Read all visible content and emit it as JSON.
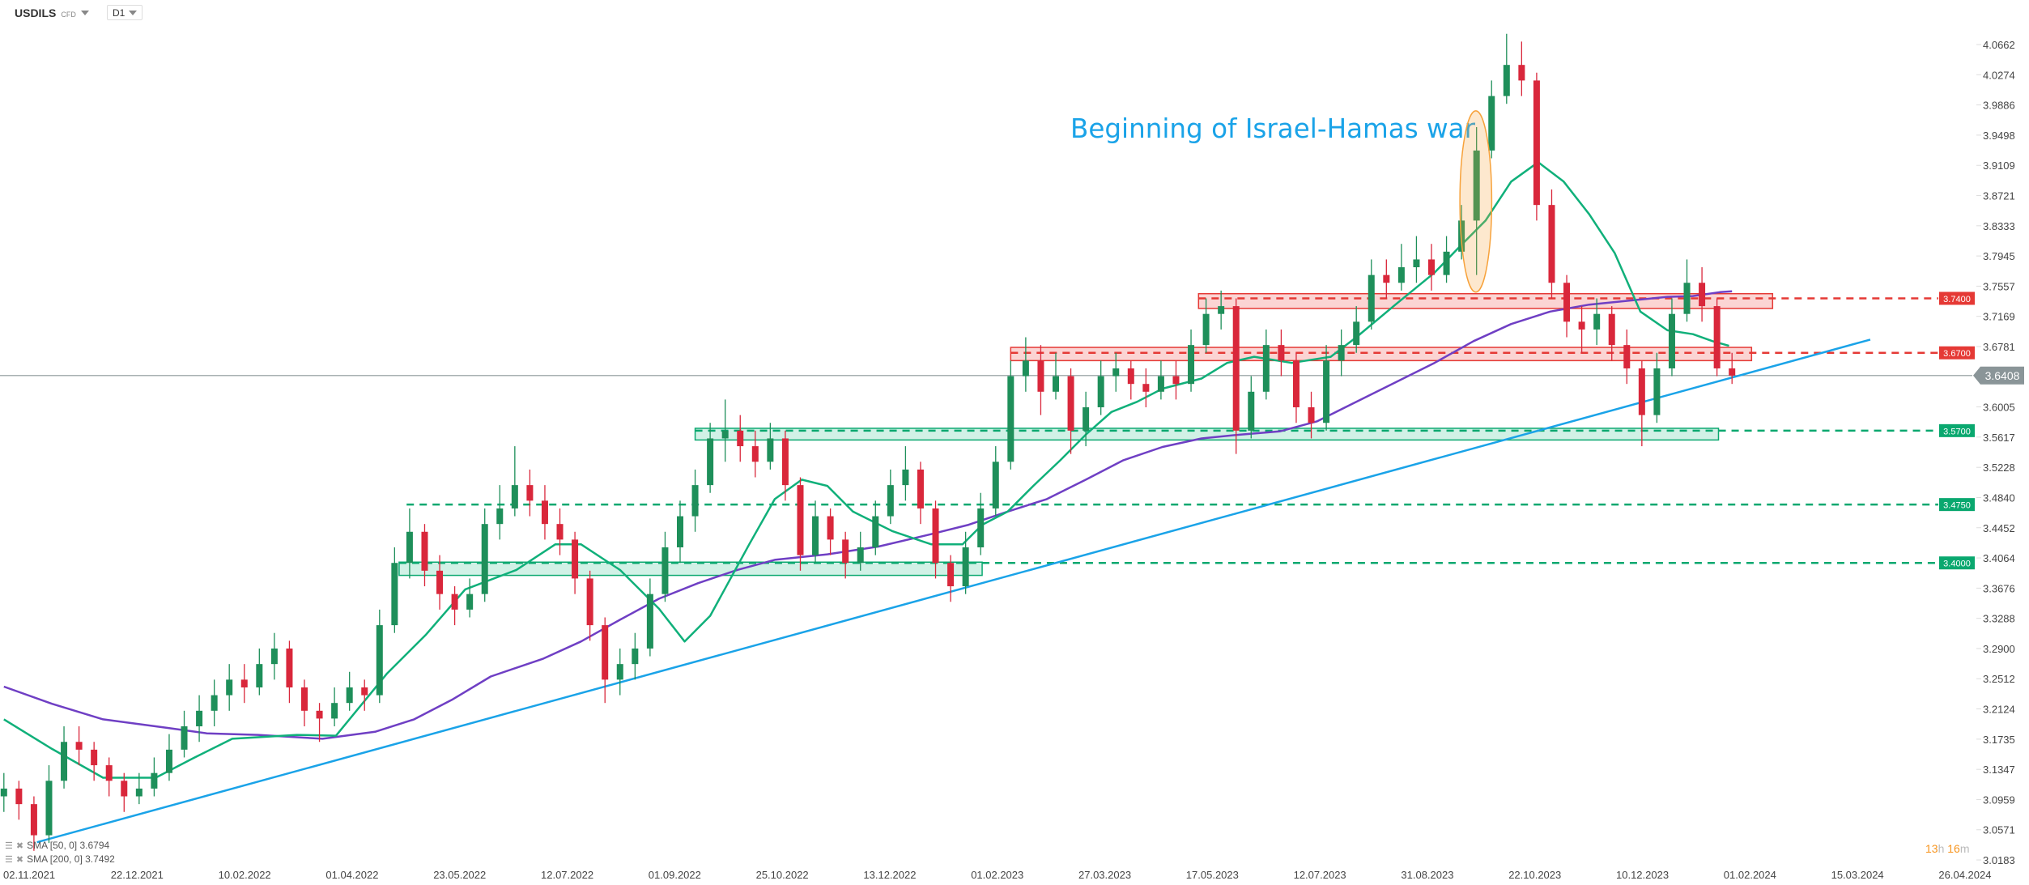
{
  "header": {
    "symbol": "USDILS",
    "instrument_type": "CFD",
    "timeframe": "D1"
  },
  "legend": [
    {
      "label": "SMA [50,  0] 3.6794",
      "color": "#10b07a"
    },
    {
      "label": "SMA [200,  0] 3.7492",
      "color": "#6f3fc4"
    }
  ],
  "countdown": {
    "hours": "13",
    "h": "h",
    "minutes": "16",
    "m": "m"
  },
  "annotation": {
    "text": "Beginning of Israel-Hamas war",
    "color": "#1aa3e8"
  },
  "colors": {
    "up": "#1e8f5a",
    "down": "#d9273b",
    "sma50": "#10b07a",
    "sma200": "#6f3fc4",
    "trendline": "#1aa3e8",
    "resistance": "#e53935",
    "support": "#0aa86f",
    "current": "#8a9598",
    "highlight": "#f7a23b"
  },
  "chart_data": {
    "type": "candlestick",
    "title": "USDILS",
    "ylim": [
      3.0183,
      4.0662
    ],
    "y_ticks": [
      "4.0662",
      "4.0274",
      "3.9886",
      "3.9498",
      "3.9109",
      "3.8721",
      "3.8333",
      "3.7945",
      "3.7557",
      "3.7169",
      "3.6781",
      "3.6005",
      "3.5617",
      "3.5228",
      "3.4840",
      "3.4452",
      "3.4064",
      "3.3676",
      "3.3288",
      "3.2900",
      "3.2512",
      "3.2124",
      "3.1735",
      "3.1347",
      "3.0959",
      "3.0571",
      "3.0183"
    ],
    "x_ticks": [
      "02.11.2021",
      "22.12.2021",
      "10.02.2022",
      "01.04.2022",
      "23.05.2022",
      "12.07.2022",
      "01.09.2022",
      "25.10.2022",
      "13.12.2022",
      "01.02.2023",
      "27.03.2023",
      "17.05.2023",
      "12.07.2023",
      "31.08.2023",
      "22.10.2023",
      "10.12.2023",
      "01.02.2024",
      "15.03.2024",
      "26.04.2024"
    ],
    "current_price": "3.6408",
    "ohlc": [
      [
        3.1,
        3.13,
        3.08,
        3.11
      ],
      [
        3.11,
        3.12,
        3.07,
        3.09
      ],
      [
        3.09,
        3.1,
        3.03,
        3.05
      ],
      [
        3.05,
        3.14,
        3.04,
        3.12
      ],
      [
        3.12,
        3.19,
        3.11,
        3.17
      ],
      [
        3.17,
        3.19,
        3.14,
        3.16
      ],
      [
        3.16,
        3.17,
        3.12,
        3.14
      ],
      [
        3.14,
        3.15,
        3.1,
        3.12
      ],
      [
        3.12,
        3.13,
        3.08,
        3.1
      ],
      [
        3.1,
        3.13,
        3.09,
        3.11
      ],
      [
        3.11,
        3.15,
        3.1,
        3.13
      ],
      [
        3.13,
        3.18,
        3.12,
        3.16
      ],
      [
        3.16,
        3.21,
        3.15,
        3.19
      ],
      [
        3.19,
        3.23,
        3.17,
        3.21
      ],
      [
        3.21,
        3.25,
        3.19,
        3.23
      ],
      [
        3.23,
        3.27,
        3.21,
        3.25
      ],
      [
        3.25,
        3.27,
        3.22,
        3.24
      ],
      [
        3.24,
        3.29,
        3.23,
        3.27
      ],
      [
        3.27,
        3.31,
        3.25,
        3.29
      ],
      [
        3.29,
        3.3,
        3.22,
        3.24
      ],
      [
        3.24,
        3.25,
        3.19,
        3.21
      ],
      [
        3.21,
        3.22,
        3.17,
        3.2
      ],
      [
        3.2,
        3.24,
        3.19,
        3.22
      ],
      [
        3.22,
        3.26,
        3.21,
        3.24
      ],
      [
        3.24,
        3.25,
        3.21,
        3.23
      ],
      [
        3.23,
        3.34,
        3.22,
        3.32
      ],
      [
        3.32,
        3.42,
        3.31,
        3.4
      ],
      [
        3.4,
        3.47,
        3.38,
        3.44
      ],
      [
        3.44,
        3.45,
        3.37,
        3.39
      ],
      [
        3.39,
        3.41,
        3.34,
        3.36
      ],
      [
        3.36,
        3.37,
        3.32,
        3.34
      ],
      [
        3.34,
        3.38,
        3.33,
        3.36
      ],
      [
        3.36,
        3.47,
        3.35,
        3.45
      ],
      [
        3.45,
        3.5,
        3.43,
        3.47
      ],
      [
        3.47,
        3.55,
        3.46,
        3.5
      ],
      [
        3.5,
        3.52,
        3.46,
        3.48
      ],
      [
        3.48,
        3.5,
        3.43,
        3.45
      ],
      [
        3.45,
        3.47,
        3.41,
        3.43
      ],
      [
        3.43,
        3.44,
        3.36,
        3.38
      ],
      [
        3.38,
        3.39,
        3.3,
        3.32
      ],
      [
        3.32,
        3.33,
        3.22,
        3.25
      ],
      [
        3.25,
        3.29,
        3.23,
        3.27
      ],
      [
        3.27,
        3.31,
        3.25,
        3.29
      ],
      [
        3.29,
        3.38,
        3.28,
        3.36
      ],
      [
        3.36,
        3.44,
        3.35,
        3.42
      ],
      [
        3.42,
        3.48,
        3.4,
        3.46
      ],
      [
        3.46,
        3.52,
        3.44,
        3.5
      ],
      [
        3.5,
        3.58,
        3.49,
        3.56
      ],
      [
        3.56,
        3.61,
        3.53,
        3.57
      ],
      [
        3.57,
        3.59,
        3.53,
        3.55
      ],
      [
        3.55,
        3.57,
        3.51,
        3.53
      ],
      [
        3.53,
        3.58,
        3.52,
        3.56
      ],
      [
        3.56,
        3.57,
        3.48,
        3.5
      ],
      [
        3.5,
        3.51,
        3.39,
        3.41
      ],
      [
        3.41,
        3.48,
        3.4,
        3.46
      ],
      [
        3.46,
        3.47,
        3.41,
        3.43
      ],
      [
        3.43,
        3.44,
        3.38,
        3.4
      ],
      [
        3.4,
        3.44,
        3.39,
        3.42
      ],
      [
        3.42,
        3.48,
        3.41,
        3.46
      ],
      [
        3.46,
        3.52,
        3.45,
        3.5
      ],
      [
        3.5,
        3.55,
        3.48,
        3.52
      ],
      [
        3.52,
        3.53,
        3.45,
        3.47
      ],
      [
        3.47,
        3.48,
        3.38,
        3.4
      ],
      [
        3.4,
        3.41,
        3.35,
        3.37
      ],
      [
        3.37,
        3.44,
        3.36,
        3.42
      ],
      [
        3.42,
        3.49,
        3.41,
        3.47
      ],
      [
        3.47,
        3.55,
        3.46,
        3.53
      ],
      [
        3.53,
        3.66,
        3.52,
        3.64
      ],
      [
        3.64,
        3.69,
        3.62,
        3.66
      ],
      [
        3.66,
        3.68,
        3.59,
        3.62
      ],
      [
        3.62,
        3.67,
        3.61,
        3.64
      ],
      [
        3.64,
        3.65,
        3.54,
        3.57
      ],
      [
        3.57,
        3.62,
        3.55,
        3.6
      ],
      [
        3.6,
        3.66,
        3.59,
        3.64
      ],
      [
        3.64,
        3.67,
        3.62,
        3.65
      ],
      [
        3.65,
        3.66,
        3.61,
        3.63
      ],
      [
        3.63,
        3.65,
        3.6,
        3.62
      ],
      [
        3.62,
        3.66,
        3.61,
        3.64
      ],
      [
        3.64,
        3.66,
        3.61,
        3.63
      ],
      [
        3.63,
        3.7,
        3.62,
        3.68
      ],
      [
        3.68,
        3.74,
        3.67,
        3.72
      ],
      [
        3.72,
        3.75,
        3.7,
        3.73
      ],
      [
        3.73,
        3.74,
        3.54,
        3.57
      ],
      [
        3.57,
        3.64,
        3.56,
        3.62
      ],
      [
        3.62,
        3.7,
        3.61,
        3.68
      ],
      [
        3.68,
        3.7,
        3.64,
        3.66
      ],
      [
        3.66,
        3.67,
        3.58,
        3.6
      ],
      [
        3.6,
        3.62,
        3.56,
        3.58
      ],
      [
        3.58,
        3.68,
        3.57,
        3.66
      ],
      [
        3.66,
        3.7,
        3.64,
        3.68
      ],
      [
        3.68,
        3.73,
        3.67,
        3.71
      ],
      [
        3.71,
        3.79,
        3.7,
        3.77
      ],
      [
        3.77,
        3.79,
        3.74,
        3.76
      ],
      [
        3.76,
        3.81,
        3.75,
        3.78
      ],
      [
        3.78,
        3.82,
        3.76,
        3.79
      ],
      [
        3.79,
        3.81,
        3.75,
        3.77
      ],
      [
        3.77,
        3.82,
        3.76,
        3.8
      ],
      [
        3.8,
        3.86,
        3.79,
        3.84
      ],
      [
        3.84,
        3.96,
        3.77,
        3.93
      ],
      [
        3.93,
        4.02,
        3.92,
        4.0
      ],
      [
        4.0,
        4.08,
        3.99,
        4.04
      ],
      [
        4.04,
        4.07,
        4.0,
        4.02
      ],
      [
        4.02,
        4.03,
        3.84,
        3.86
      ],
      [
        3.86,
        3.88,
        3.74,
        3.76
      ],
      [
        3.76,
        3.77,
        3.69,
        3.71
      ],
      [
        3.71,
        3.73,
        3.67,
        3.7
      ],
      [
        3.7,
        3.74,
        3.68,
        3.72
      ],
      [
        3.72,
        3.73,
        3.66,
        3.68
      ],
      [
        3.68,
        3.7,
        3.63,
        3.65
      ],
      [
        3.65,
        3.66,
        3.55,
        3.59
      ],
      [
        3.59,
        3.67,
        3.58,
        3.65
      ],
      [
        3.65,
        3.74,
        3.64,
        3.72
      ],
      [
        3.72,
        3.79,
        3.71,
        3.76
      ],
      [
        3.76,
        3.78,
        3.71,
        3.73
      ],
      [
        3.73,
        3.74,
        3.64,
        3.65
      ],
      [
        3.65,
        3.67,
        3.63,
        3.6408
      ]
    ],
    "sma50": [
      [
        0,
        3.199
      ],
      [
        3.2,
        3.161
      ],
      [
        6.6,
        3.124
      ],
      [
        10.1,
        3.124
      ],
      [
        12.6,
        3.149
      ],
      [
        15.2,
        3.174
      ],
      [
        19.5,
        3.179
      ],
      [
        22.1,
        3.178
      ],
      [
        25.5,
        3.258
      ],
      [
        28.1,
        3.308
      ],
      [
        30.7,
        3.366
      ],
      [
        34.1,
        3.391
      ],
      [
        36.7,
        3.424
      ],
      [
        38.4,
        3.424
      ],
      [
        41.0,
        3.391
      ],
      [
        43.6,
        3.341
      ],
      [
        45.3,
        3.299
      ],
      [
        47.0,
        3.332
      ],
      [
        49.6,
        3.424
      ],
      [
        51.3,
        3.482
      ],
      [
        53.1,
        3.507
      ],
      [
        54.8,
        3.499
      ],
      [
        56.5,
        3.466
      ],
      [
        59.1,
        3.441
      ],
      [
        61.7,
        3.424
      ],
      [
        63.8,
        3.424
      ],
      [
        65.1,
        3.449
      ],
      [
        66.8,
        3.466
      ],
      [
        68.5,
        3.499
      ],
      [
        70.3,
        3.532
      ],
      [
        72.0,
        3.565
      ],
      [
        73.7,
        3.594
      ],
      [
        75.4,
        3.607
      ],
      [
        77.1,
        3.624
      ],
      [
        79.7,
        3.637
      ],
      [
        81.4,
        3.657
      ],
      [
        83.2,
        3.665
      ],
      [
        85.7,
        3.657
      ],
      [
        88.3,
        3.665
      ],
      [
        90.0,
        3.69
      ],
      [
        92.6,
        3.732
      ],
      [
        95.2,
        3.773
      ],
      [
        96.9,
        3.807
      ],
      [
        98.6,
        3.84
      ],
      [
        100.3,
        3.89
      ],
      [
        102.1,
        3.915
      ],
      [
        103.8,
        3.89
      ],
      [
        105.5,
        3.848
      ],
      [
        107.2,
        3.798
      ],
      [
        108.9,
        3.723
      ],
      [
        110.7,
        3.699
      ],
      [
        112.4,
        3.694
      ],
      [
        113.7,
        3.685
      ],
      [
        114.8,
        3.679
      ]
    ],
    "sma200": [
      [
        0,
        3.241
      ],
      [
        3.2,
        3.219
      ],
      [
        6.6,
        3.199
      ],
      [
        10.9,
        3.188
      ],
      [
        13.5,
        3.181
      ],
      [
        16.9,
        3.179
      ],
      [
        21.2,
        3.174
      ],
      [
        24.7,
        3.183
      ],
      [
        27.3,
        3.199
      ],
      [
        29.8,
        3.224
      ],
      [
        32.4,
        3.254
      ],
      [
        35.9,
        3.277
      ],
      [
        38.4,
        3.299
      ],
      [
        41.0,
        3.327
      ],
      [
        43.6,
        3.354
      ],
      [
        46.2,
        3.374
      ],
      [
        48.8,
        3.391
      ],
      [
        51.3,
        3.404
      ],
      [
        54.8,
        3.411
      ],
      [
        58.2,
        3.421
      ],
      [
        61.7,
        3.437
      ],
      [
        64.2,
        3.449
      ],
      [
        66.8,
        3.466
      ],
      [
        69.4,
        3.482
      ],
      [
        72.0,
        3.507
      ],
      [
        74.5,
        3.532
      ],
      [
        77.1,
        3.549
      ],
      [
        79.7,
        3.56
      ],
      [
        82.3,
        3.565
      ],
      [
        84.9,
        3.569
      ],
      [
        87.4,
        3.582
      ],
      [
        90.0,
        3.607
      ],
      [
        92.6,
        3.632
      ],
      [
        95.2,
        3.657
      ],
      [
        97.8,
        3.685
      ],
      [
        100.3,
        3.707
      ],
      [
        102.9,
        3.723
      ],
      [
        105.5,
        3.732
      ],
      [
        108.1,
        3.737
      ],
      [
        110.7,
        3.742
      ],
      [
        112.4,
        3.743
      ],
      [
        114.2,
        3.748
      ],
      [
        115,
        3.749
      ]
    ],
    "trendline": [
      [
        2.2,
        3.041
      ],
      [
        124.2,
        3.687
      ]
    ],
    "levels": [
      {
        "price": 3.74,
        "label": "3.7400",
        "kind": "resistance",
        "zone": [
          3.727,
          3.746
        ],
        "zone_from": 79.5,
        "zone_to": 117.7
      },
      {
        "price": 3.67,
        "label": "3.6700",
        "kind": "resistance",
        "zone": [
          3.66,
          3.677
        ],
        "zone_from": 67.0,
        "zone_to": 116.3
      },
      {
        "price": 3.57,
        "label": "3.5700",
        "kind": "support",
        "zone": [
          3.558,
          3.573
        ],
        "zone_from": 46.0,
        "zone_to": 114.1
      },
      {
        "price": 3.475,
        "label": "3.4750",
        "kind": "support",
        "line_from": 26.8
      },
      {
        "price": 3.4,
        "label": "3.4000",
        "kind": "support",
        "zone": [
          3.384,
          3.401
        ],
        "zone_from": 26.3,
        "zone_to": 65.1
      }
    ],
    "highlight_ellipse": {
      "index_range": [
        97.0,
        98.9
      ],
      "price_range": [
        3.748,
        3.981
      ]
    }
  }
}
